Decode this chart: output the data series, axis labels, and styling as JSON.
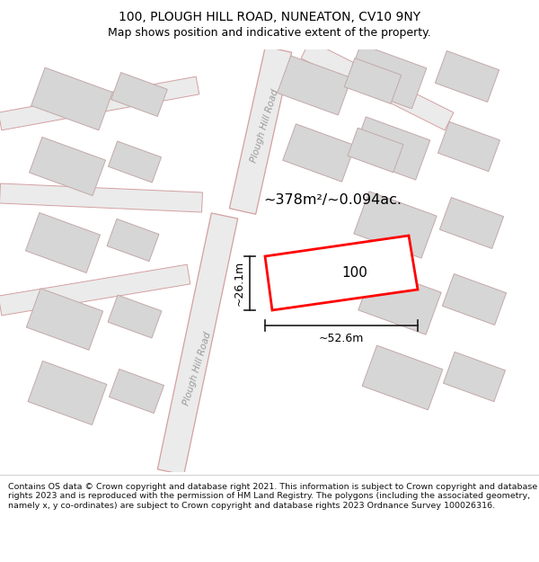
{
  "title": "100, PLOUGH HILL ROAD, NUNEATON, CV10 9NY",
  "subtitle": "Map shows position and indicative extent of the property.",
  "footer": "Contains OS data © Crown copyright and database right 2021. This information is subject to Crown copyright and database rights 2023 and is reproduced with the permission of HM Land Registry. The polygons (including the associated geometry, namely x, y co-ordinates) are subject to Crown copyright and database rights 2023 Ordnance Survey 100026316.",
  "map_bg": "#f0eeee",
  "road_fill": "#ebebeb",
  "road_stroke": "#d4a0a0",
  "building_fill": "#d6d6d6",
  "building_stroke": "#c4a8a8",
  "highlight_stroke": "#ff0000",
  "measure_color": "#1a1a1a",
  "area_text": "~378m²/~0.094ac.",
  "property_label": "100",
  "width_label": "~52.6m",
  "height_label": "~26.1m",
  "road_label_upper": "Plough Hill Road",
  "road_label_lower": "Plough Hill Road",
  "title_fontsize": 10,
  "subtitle_fontsize": 9
}
